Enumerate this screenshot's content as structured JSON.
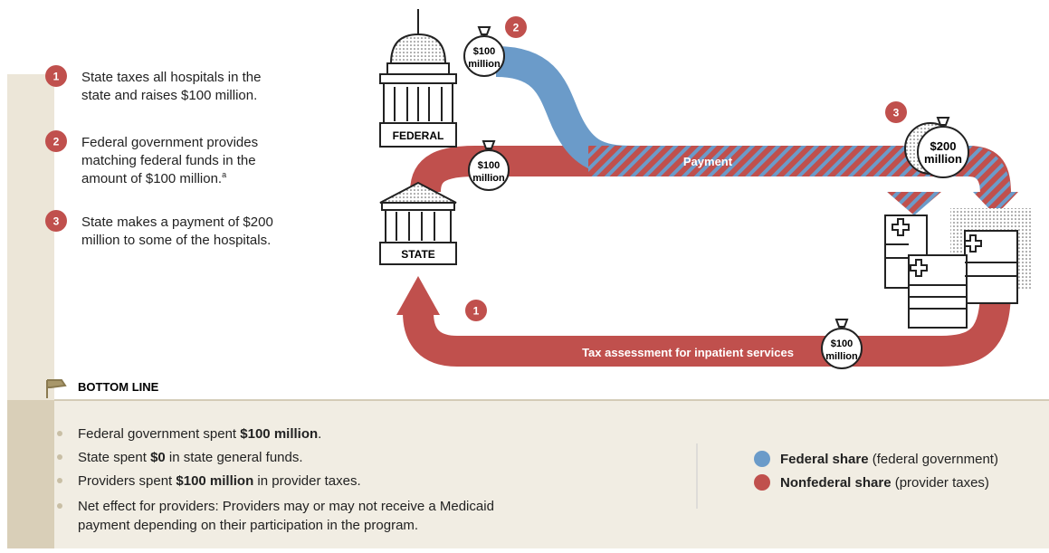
{
  "steps": [
    {
      "number": "1",
      "text": [
        "State taxes all hospitals in the",
        "state and raises $100 million."
      ]
    },
    {
      "number": "2",
      "text": [
        "Federal government provides",
        "matching federal funds in the",
        "amount of $100 million."
      ],
      "footnote": "a"
    },
    {
      "number": "3",
      "text": [
        "State makes a payment of $200",
        "million to some of the hospitals."
      ]
    }
  ],
  "diagram": {
    "federal_label": "FEDERAL",
    "state_label": "STATE",
    "payment_label": "Payment",
    "tax_label": "Tax assessment for inpatient services",
    "bags": [
      {
        "lines": [
          "$100",
          "million"
        ],
        "step": "2"
      },
      {
        "lines": [
          "$100",
          "million"
        ]
      },
      {
        "lines": [
          "$200",
          "million"
        ],
        "step": "3"
      },
      {
        "lines": [
          "$100",
          "million"
        ],
        "step": "1"
      }
    ]
  },
  "bottom_line": {
    "heading": "BOTTOM LINE",
    "bullets": [
      [
        "Federal government spent ",
        "$100 million",
        "."
      ],
      [
        "State spent ",
        "$0",
        " in state general funds."
      ],
      [
        "Providers spent ",
        "$100 million",
        " in provider taxes."
      ],
      [
        "Net effect for providers: Providers may or may not receive a Medicaid",
        "",
        ""
      ]
    ],
    "bullet4_line2": "payment depending on their participation in the program.",
    "legend": [
      {
        "bold": "Federal share",
        "rest": " (federal government)",
        "color": "#6b9bc9"
      },
      {
        "bold": "Nonfederal share",
        "rest": " (provider taxes)",
        "color": "#c0504d"
      }
    ]
  }
}
